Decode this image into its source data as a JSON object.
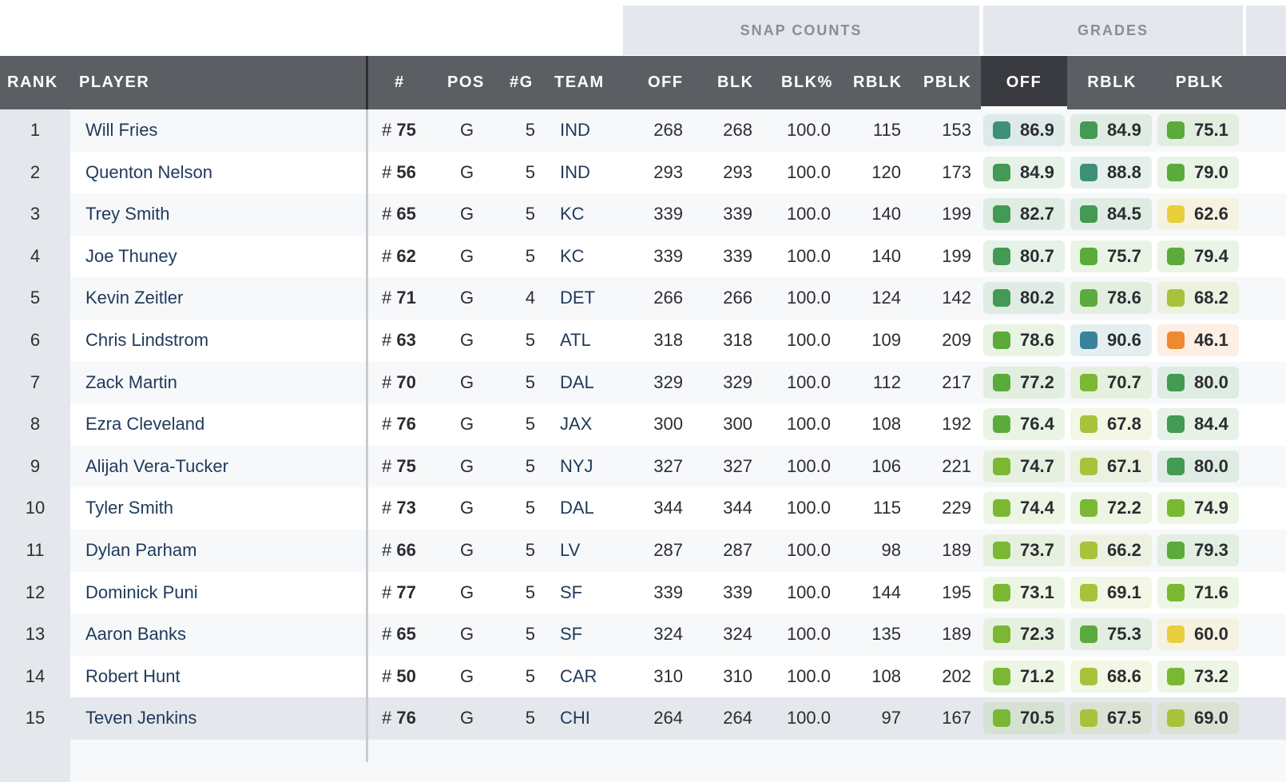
{
  "groups": {
    "snap_counts": "SNAP COUNTS",
    "grades": "GRADES"
  },
  "columns": {
    "rank": "RANK",
    "player": "PLAYER",
    "num": "#",
    "pos": "POS",
    "games": "#G",
    "team": "TEAM",
    "off": "OFF",
    "blk": "BLK",
    "blk_pct": "BLK%",
    "rblk": "RBLK",
    "pblk": "PBLK",
    "grade_off": "OFF",
    "grade_rblk": "RBLK",
    "grade_pblk": "PBLK"
  },
  "sorted_column": "grade_off",
  "grade_colors": {
    "90+": "#3a8499",
    "85-89": "#3d8f78",
    "80-84": "#439a52",
    "75-79": "#5bab3c",
    "70-74": "#7ab833",
    "65-69": "#a8c23c",
    "60-64": "#e8cf3c",
    "below_50": "#ef8a2f"
  },
  "hover_row": 15,
  "rows": [
    {
      "rank": "1",
      "player": "Will Fries",
      "num": "75",
      "pos": "G",
      "g": "5",
      "team": "IND",
      "off": "268",
      "blk": "268",
      "pct": "100.0",
      "rblk": "115",
      "pblk": "153",
      "go": "86.9",
      "gr": "84.9",
      "gp": "75.1"
    },
    {
      "rank": "2",
      "player": "Quenton Nelson",
      "num": "56",
      "pos": "G",
      "g": "5",
      "team": "IND",
      "off": "293",
      "blk": "293",
      "pct": "100.0",
      "rblk": "120",
      "pblk": "173",
      "go": "84.9",
      "gr": "88.8",
      "gp": "79.0"
    },
    {
      "rank": "3",
      "player": "Trey Smith",
      "num": "65",
      "pos": "G",
      "g": "5",
      "team": "KC",
      "off": "339",
      "blk": "339",
      "pct": "100.0",
      "rblk": "140",
      "pblk": "199",
      "go": "82.7",
      "gr": "84.5",
      "gp": "62.6"
    },
    {
      "rank": "4",
      "player": "Joe Thuney",
      "num": "62",
      "pos": "G",
      "g": "5",
      "team": "KC",
      "off": "339",
      "blk": "339",
      "pct": "100.0",
      "rblk": "140",
      "pblk": "199",
      "go": "80.7",
      "gr": "75.7",
      "gp": "79.4"
    },
    {
      "rank": "5",
      "player": "Kevin Zeitler",
      "num": "71",
      "pos": "G",
      "g": "4",
      "team": "DET",
      "off": "266",
      "blk": "266",
      "pct": "100.0",
      "rblk": "124",
      "pblk": "142",
      "go": "80.2",
      "gr": "78.6",
      "gp": "68.2"
    },
    {
      "rank": "6",
      "player": "Chris Lindstrom",
      "num": "63",
      "pos": "G",
      "g": "5",
      "team": "ATL",
      "off": "318",
      "blk": "318",
      "pct": "100.0",
      "rblk": "109",
      "pblk": "209",
      "go": "78.6",
      "gr": "90.6",
      "gp": "46.1"
    },
    {
      "rank": "7",
      "player": "Zack Martin",
      "num": "70",
      "pos": "G",
      "g": "5",
      "team": "DAL",
      "off": "329",
      "blk": "329",
      "pct": "100.0",
      "rblk": "112",
      "pblk": "217",
      "go": "77.2",
      "gr": "70.7",
      "gp": "80.0"
    },
    {
      "rank": "8",
      "player": "Ezra Cleveland",
      "num": "76",
      "pos": "G",
      "g": "5",
      "team": "JAX",
      "off": "300",
      "blk": "300",
      "pct": "100.0",
      "rblk": "108",
      "pblk": "192",
      "go": "76.4",
      "gr": "67.8",
      "gp": "84.4"
    },
    {
      "rank": "9",
      "player": "Alijah Vera-Tucker",
      "num": "75",
      "pos": "G",
      "g": "5",
      "team": "NYJ",
      "off": "327",
      "blk": "327",
      "pct": "100.0",
      "rblk": "106",
      "pblk": "221",
      "go": "74.7",
      "gr": "67.1",
      "gp": "80.0"
    },
    {
      "rank": "10",
      "player": "Tyler Smith",
      "num": "73",
      "pos": "G",
      "g": "5",
      "team": "DAL",
      "off": "344",
      "blk": "344",
      "pct": "100.0",
      "rblk": "115",
      "pblk": "229",
      "go": "74.4",
      "gr": "72.2",
      "gp": "74.9"
    },
    {
      "rank": "11",
      "player": "Dylan Parham",
      "num": "66",
      "pos": "G",
      "g": "5",
      "team": "LV",
      "off": "287",
      "blk": "287",
      "pct": "100.0",
      "rblk": "98",
      "pblk": "189",
      "go": "73.7",
      "gr": "66.2",
      "gp": "79.3"
    },
    {
      "rank": "12",
      "player": "Dominick Puni",
      "num": "77",
      "pos": "G",
      "g": "5",
      "team": "SF",
      "off": "339",
      "blk": "339",
      "pct": "100.0",
      "rblk": "144",
      "pblk": "195",
      "go": "73.1",
      "gr": "69.1",
      "gp": "71.6"
    },
    {
      "rank": "13",
      "player": "Aaron Banks",
      "num": "65",
      "pos": "G",
      "g": "5",
      "team": "SF",
      "off": "324",
      "blk": "324",
      "pct": "100.0",
      "rblk": "135",
      "pblk": "189",
      "go": "72.3",
      "gr": "75.3",
      "gp": "60.0"
    },
    {
      "rank": "14",
      "player": "Robert Hunt",
      "num": "50",
      "pos": "G",
      "g": "5",
      "team": "CAR",
      "off": "310",
      "blk": "310",
      "pct": "100.0",
      "rblk": "108",
      "pblk": "202",
      "go": "71.2",
      "gr": "68.6",
      "gp": "73.2"
    },
    {
      "rank": "15",
      "player": "Teven Jenkins",
      "num": "76",
      "pos": "G",
      "g": "5",
      "team": "CHI",
      "off": "264",
      "blk": "264",
      "pct": "100.0",
      "rblk": "97",
      "pblk": "167",
      "go": "70.5",
      "gr": "67.5",
      "gp": "69.0"
    }
  ]
}
